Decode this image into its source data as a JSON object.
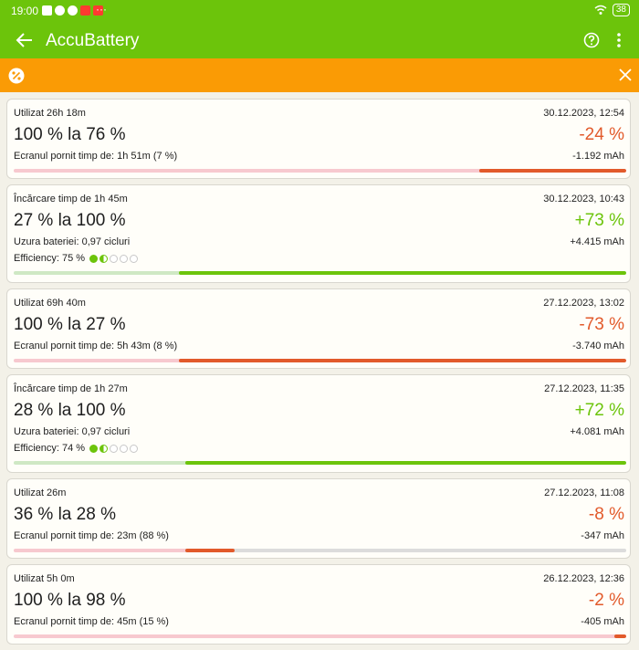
{
  "status_bar": {
    "time": "19:00",
    "more": "···",
    "battery": "38"
  },
  "app_bar": {
    "title": "AccuBattery"
  },
  "colors": {
    "accent": "#6cc40b",
    "banner": "#fa9b05",
    "discharge": "#e25a2b",
    "charge": "#6cc40b"
  },
  "sessions": [
    {
      "kind": "discharge",
      "type_label": "Utilizat 26h 18m",
      "date": "30.12.2023, 12:54",
      "range": "100 % la 76 %",
      "percent": "-24 %",
      "info": "Ecranul pornit timp de: 1h 51m (7 %)",
      "mah": "-1.192 mAh",
      "bar": {
        "start": 76,
        "end": 100
      }
    },
    {
      "kind": "charge",
      "type_label": "Încărcare timp de 1h 45m",
      "date": "30.12.2023, 10:43",
      "range": "27 % la 100 %",
      "percent": "+73 %",
      "info": "Uzura bateriei: 0,97 cicluri",
      "mah": "+4.415 mAh",
      "efficiency": "Efficiency: 75 %",
      "eff_dots": [
        "full",
        "half",
        "empty",
        "empty",
        "empty"
      ],
      "bar": {
        "start": 27,
        "end": 100
      }
    },
    {
      "kind": "discharge",
      "type_label": "Utilizat 69h 40m",
      "date": "27.12.2023, 13:02",
      "range": "100 % la 27 %",
      "percent": "-73 %",
      "info": "Ecranul pornit timp de: 5h 43m (8 %)",
      "mah": "-3.740 mAh",
      "bar": {
        "start": 27,
        "end": 100
      }
    },
    {
      "kind": "charge",
      "type_label": "Încărcare timp de 1h 27m",
      "date": "27.12.2023, 11:35",
      "range": "28 % la 100 %",
      "percent": "+72 %",
      "info": "Uzura bateriei: 0,97 cicluri",
      "mah": "+4.081 mAh",
      "efficiency": "Efficiency: 74 %",
      "eff_dots": [
        "full",
        "half",
        "empty",
        "empty",
        "empty"
      ],
      "bar": {
        "start": 28,
        "end": 100
      }
    },
    {
      "kind": "discharge",
      "type_label": "Utilizat 26m",
      "date": "27.12.2023, 11:08",
      "range": "36 % la 28 %",
      "percent": "-8 %",
      "info": "Ecranul pornit timp de: 23m (88 %)",
      "mah": "-347 mAh",
      "bar": {
        "start": 28,
        "end": 36
      }
    },
    {
      "kind": "discharge",
      "type_label": "Utilizat 5h 0m",
      "date": "26.12.2023, 12:36",
      "range": "100 % la 98 %",
      "percent": "-2 %",
      "info": "Ecranul pornit timp de: 45m (15 %)",
      "mah": "-405 mAh",
      "bar": {
        "start": 98,
        "end": 100
      }
    }
  ]
}
